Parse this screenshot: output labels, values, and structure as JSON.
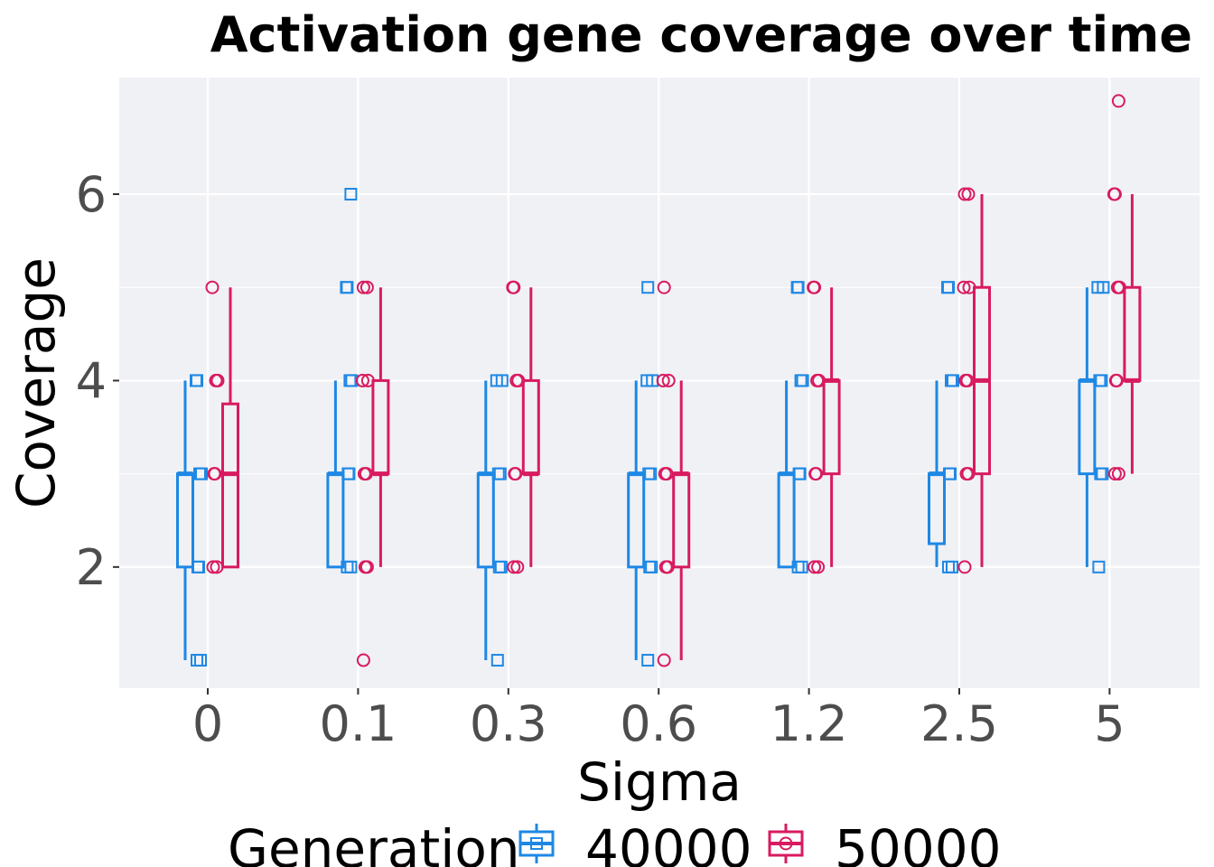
{
  "chart_data": {
    "type": "boxplot",
    "title": "Activation gene coverage over time",
    "xlabel": "Sigma",
    "ylabel": "Coverage",
    "categories": [
      "0",
      "0.1",
      "0.3",
      "0.6",
      "1.2",
      "2.5",
      "5"
    ],
    "ylim": [
      0.7,
      7.25
    ],
    "yticks": [
      2,
      4,
      6
    ],
    "grid": true,
    "legend": {
      "title": "Generation",
      "placement": "bottom",
      "entries": [
        "40000",
        "50000"
      ]
    },
    "series": [
      {
        "name": "40000",
        "color": "#1E88E5",
        "marker": "square",
        "boxes": [
          {
            "min": 1,
            "q1": 2,
            "median": 3,
            "q3": 3,
            "max": 4,
            "points": [
              1,
              1,
              2,
              2,
              3,
              3,
              4,
              4
            ]
          },
          {
            "min": 2,
            "q1": 2,
            "median": 3,
            "q3": 3,
            "max": 4,
            "points": [
              2,
              2,
              3,
              3,
              4,
              4,
              5,
              5,
              6
            ]
          },
          {
            "min": 1,
            "q1": 2,
            "median": 3,
            "q3": 3,
            "max": 4,
            "points": [
              1,
              2,
              2,
              3,
              3,
              4,
              4
            ]
          },
          {
            "min": 1,
            "q1": 2,
            "median": 3,
            "q3": 3,
            "max": 4,
            "points": [
              1,
              2,
              2,
              3,
              3,
              4,
              4,
              5
            ]
          },
          {
            "min": 2,
            "q1": 2,
            "median": 3,
            "q3": 3,
            "max": 4,
            "points": [
              2,
              2,
              3,
              3,
              4,
              4,
              5,
              5
            ]
          },
          {
            "min": 2,
            "q1": 2.25,
            "median": 3,
            "q3": 3,
            "max": 4,
            "points": [
              2,
              2,
              3,
              3,
              4,
              4,
              5,
              5
            ]
          },
          {
            "min": 2,
            "q1": 3,
            "median": 4,
            "q3": 4,
            "max": 5,
            "points": [
              2,
              3,
              3,
              4,
              4,
              5,
              5
            ]
          }
        ]
      },
      {
        "name": "50000",
        "color": "#D81B60",
        "marker": "circle",
        "boxes": [
          {
            "min": 2,
            "q1": 2,
            "median": 3,
            "q3": 3.75,
            "max": 5,
            "points": [
              2,
              2,
              3,
              3,
              4,
              4,
              5
            ]
          },
          {
            "min": 2,
            "q1": 3,
            "median": 3,
            "q3": 4,
            "max": 5,
            "points": [
              1,
              2,
              2,
              3,
              3,
              4,
              4,
              5,
              5
            ]
          },
          {
            "min": 2,
            "q1": 3,
            "median": 3,
            "q3": 4,
            "max": 5,
            "points": [
              2,
              2,
              3,
              3,
              4,
              4,
              5,
              5
            ]
          },
          {
            "min": 1,
            "q1": 2,
            "median": 3,
            "q3": 3,
            "max": 4,
            "points": [
              1,
              2,
              2,
              3,
              3,
              4,
              4,
              5
            ]
          },
          {
            "min": 2,
            "q1": 3,
            "median": 4,
            "q3": 4,
            "max": 5,
            "points": [
              2,
              2,
              3,
              3,
              4,
              4,
              5,
              5
            ]
          },
          {
            "min": 2,
            "q1": 3,
            "median": 4,
            "q3": 5,
            "max": 6,
            "points": [
              2,
              3,
              3,
              4,
              4,
              5,
              5,
              6,
              6
            ]
          },
          {
            "min": 3,
            "q1": 4,
            "median": 4,
            "q3": 5,
            "max": 6,
            "points": [
              3,
              3,
              4,
              4,
              5,
              5,
              6,
              6,
              7
            ]
          }
        ]
      }
    ]
  }
}
